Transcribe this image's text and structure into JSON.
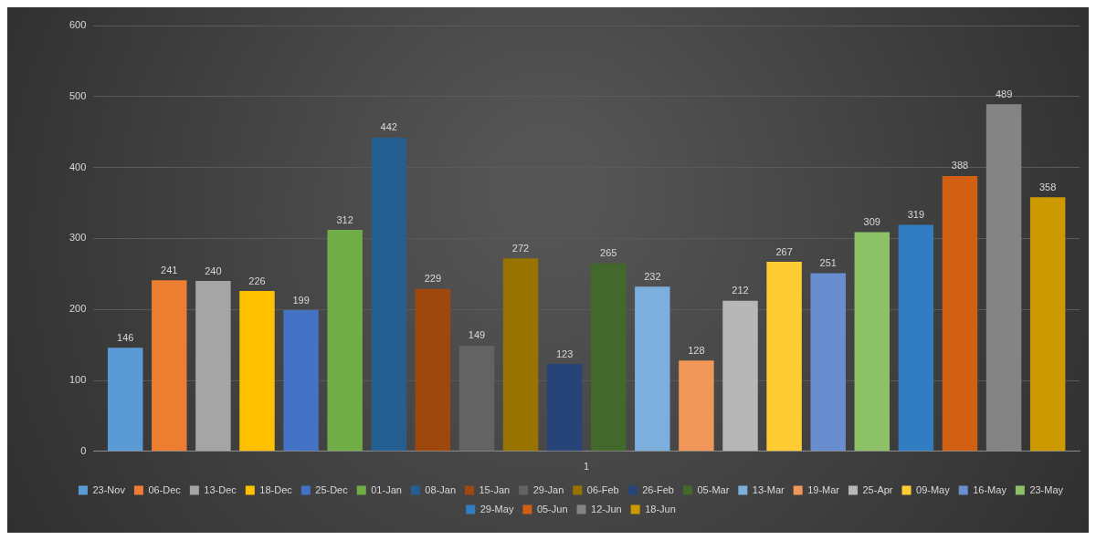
{
  "chart_data": {
    "type": "bar",
    "categories": [
      "1"
    ],
    "series": [
      {
        "name": "23-Nov",
        "color": "#5b9bd5",
        "values": [
          146
        ]
      },
      {
        "name": "06-Dec",
        "color": "#ed7d31",
        "values": [
          241
        ]
      },
      {
        "name": "13-Dec",
        "color": "#a5a5a5",
        "values": [
          240
        ]
      },
      {
        "name": "18-Dec",
        "color": "#ffc000",
        "values": [
          226
        ]
      },
      {
        "name": "25-Dec",
        "color": "#4472c4",
        "values": [
          199
        ]
      },
      {
        "name": "01-Jan",
        "color": "#70ad47",
        "values": [
          312
        ]
      },
      {
        "name": "08-Jan",
        "color": "#255e91",
        "values": [
          442
        ]
      },
      {
        "name": "15-Jan",
        "color": "#9e480e",
        "values": [
          229
        ]
      },
      {
        "name": "29-Jan",
        "color": "#636363",
        "values": [
          149
        ]
      },
      {
        "name": "06-Feb",
        "color": "#997300",
        "values": [
          272
        ]
      },
      {
        "name": "26-Feb",
        "color": "#264478",
        "values": [
          123
        ]
      },
      {
        "name": "05-Mar",
        "color": "#43682b",
        "values": [
          265
        ]
      },
      {
        "name": "13-Mar",
        "color": "#7cafdd",
        "values": [
          232
        ]
      },
      {
        "name": "19-Mar",
        "color": "#f1975a",
        "values": [
          128
        ]
      },
      {
        "name": "25-Apr",
        "color": "#b7b7b7",
        "values": [
          212
        ]
      },
      {
        "name": "09-May",
        "color": "#ffcd33",
        "values": [
          267
        ]
      },
      {
        "name": "16-May",
        "color": "#698ed0",
        "values": [
          251
        ]
      },
      {
        "name": "23-May",
        "color": "#8cc168",
        "values": [
          309
        ]
      },
      {
        "name": "29-May",
        "color": "#327dc2",
        "values": [
          319
        ]
      },
      {
        "name": "05-Jun",
        "color": "#d26012",
        "values": [
          388
        ]
      },
      {
        "name": "12-Jun",
        "color": "#848484",
        "values": [
          489
        ]
      },
      {
        "name": "18-Jun",
        "color": "#cc9a00",
        "values": [
          358
        ]
      }
    ],
    "ylim": [
      0,
      600
    ],
    "yticks": [
      0,
      100,
      200,
      300,
      400,
      500,
      600
    ],
    "grid": "y",
    "legend": "bottom",
    "data_labels": true
  }
}
